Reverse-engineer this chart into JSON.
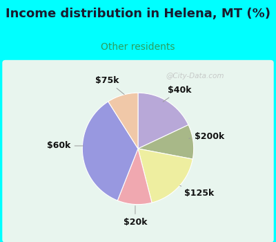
{
  "title": "Income distribution in Helena, MT (%)",
  "subtitle": "Other residents",
  "title_color": "#1a1a2e",
  "subtitle_color": "#2aa060",
  "background_color": "#00ffff",
  "chart_bg_color": "#e8f5ee",
  "slices": [
    {
      "label": "$40k",
      "value": 18,
      "color": "#b8a8d8"
    },
    {
      "label": "$200k",
      "value": 10,
      "color": "#a8b888"
    },
    {
      "label": "$125k",
      "value": 18,
      "color": "#eeeea0"
    },
    {
      "label": "$20k",
      "value": 10,
      "color": "#f0a8b0"
    },
    {
      "label": "$60k",
      "value": 35,
      "color": "#9898e0"
    },
    {
      "label": "$75k",
      "value": 9,
      "color": "#f0c8a8"
    }
  ],
  "label_fontsize": 9,
  "title_fontsize": 13,
  "subtitle_fontsize": 10,
  "watermark": "@City-Data.com"
}
